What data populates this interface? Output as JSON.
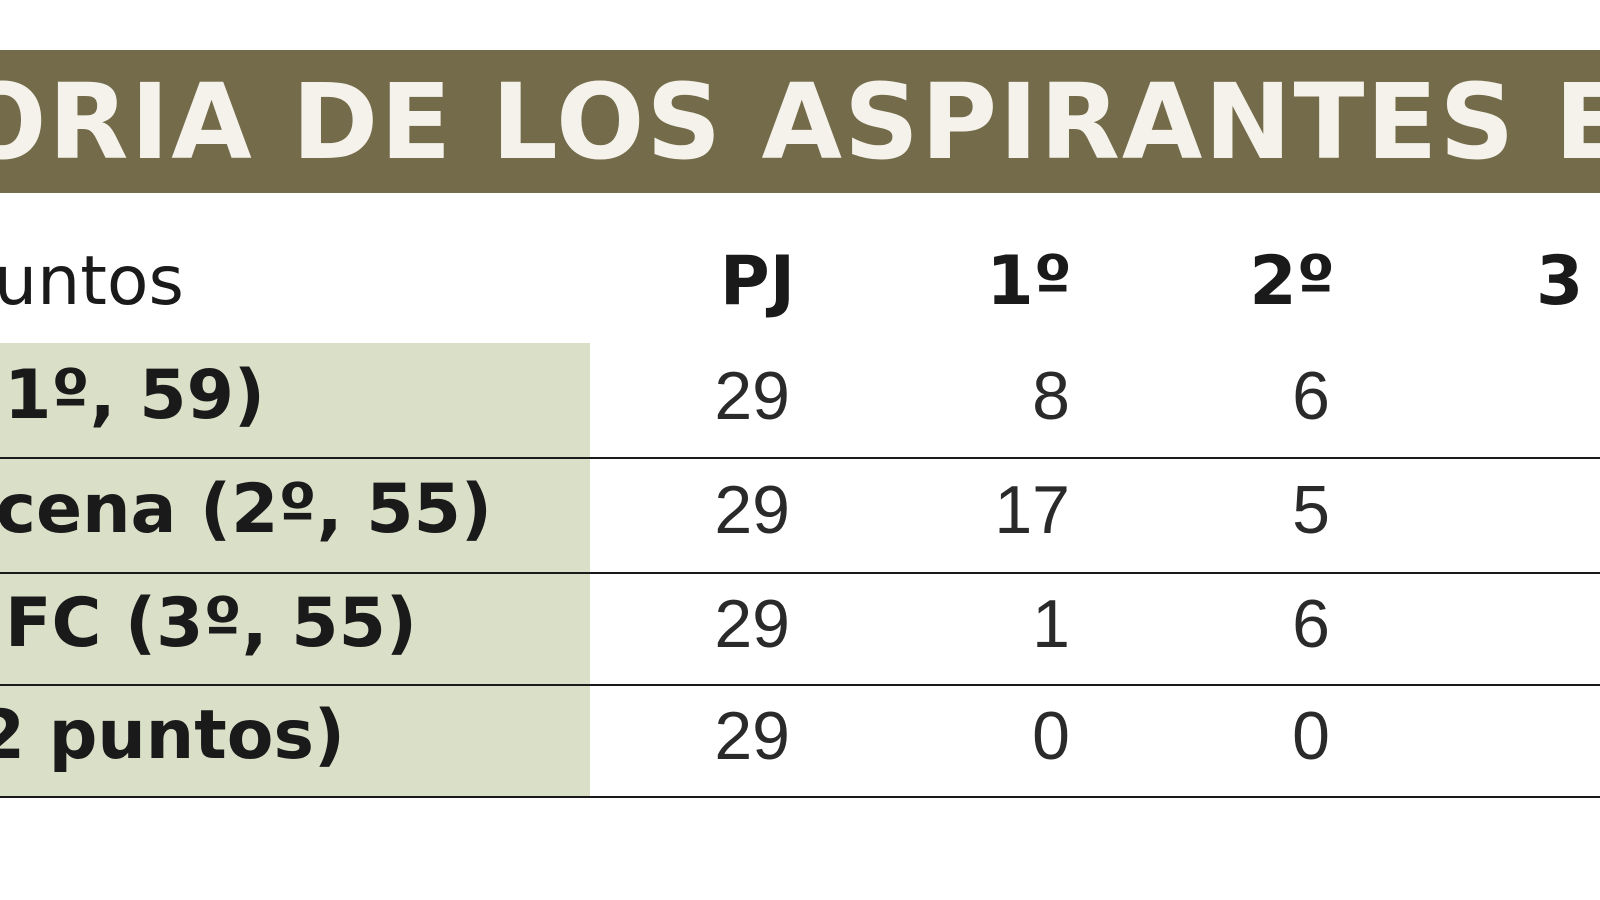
{
  "banner": {
    "title": "ORIA DE LOS ASPIRANTES EN"
  },
  "table": {
    "header_label": "untos",
    "columns": [
      "PJ",
      "1º",
      "2º",
      "3"
    ],
    "rows": [
      {
        "team": "(1º, 59)",
        "pj": "29",
        "first": "8",
        "second": "6",
        "third": ""
      },
      {
        "team": "ucena (2º, 55)",
        "pj": "29",
        "first": "17",
        "second": "5",
        "third": ""
      },
      {
        "team": "FC (3º, 55)",
        "pj": "29",
        "first": "1",
        "second": "6",
        "third": ""
      },
      {
        "team": "2 puntos)",
        "pj": "29",
        "first": "0",
        "second": "0",
        "third": ""
      }
    ]
  },
  "colors": {
    "banner": "#736b4a",
    "team_cell": "#dadfc8",
    "rule": "#1a1a1a"
  }
}
